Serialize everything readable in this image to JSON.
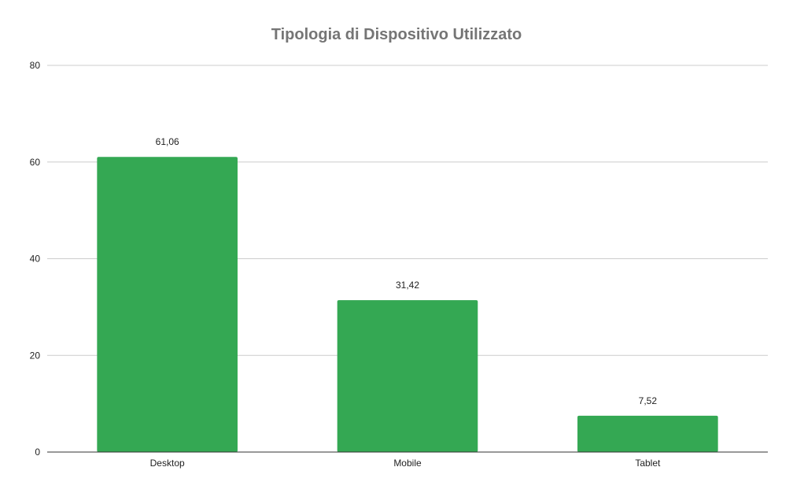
{
  "chart_data": {
    "type": "bar",
    "title": "Tipologia di Dispositivo Utilizzato",
    "xlabel": "",
    "ylabel": "",
    "categories": [
      "Desktop",
      "Mobile",
      "Tablet"
    ],
    "values": [
      61.06,
      31.42,
      7.52
    ],
    "data_labels": [
      "61,06",
      "31,42",
      "7,52"
    ],
    "ylim": [
      0,
      80
    ],
    "yticks": [
      0,
      20,
      40,
      60,
      80
    ],
    "grid": true,
    "legend": "none",
    "bar_color": "#34a853"
  }
}
